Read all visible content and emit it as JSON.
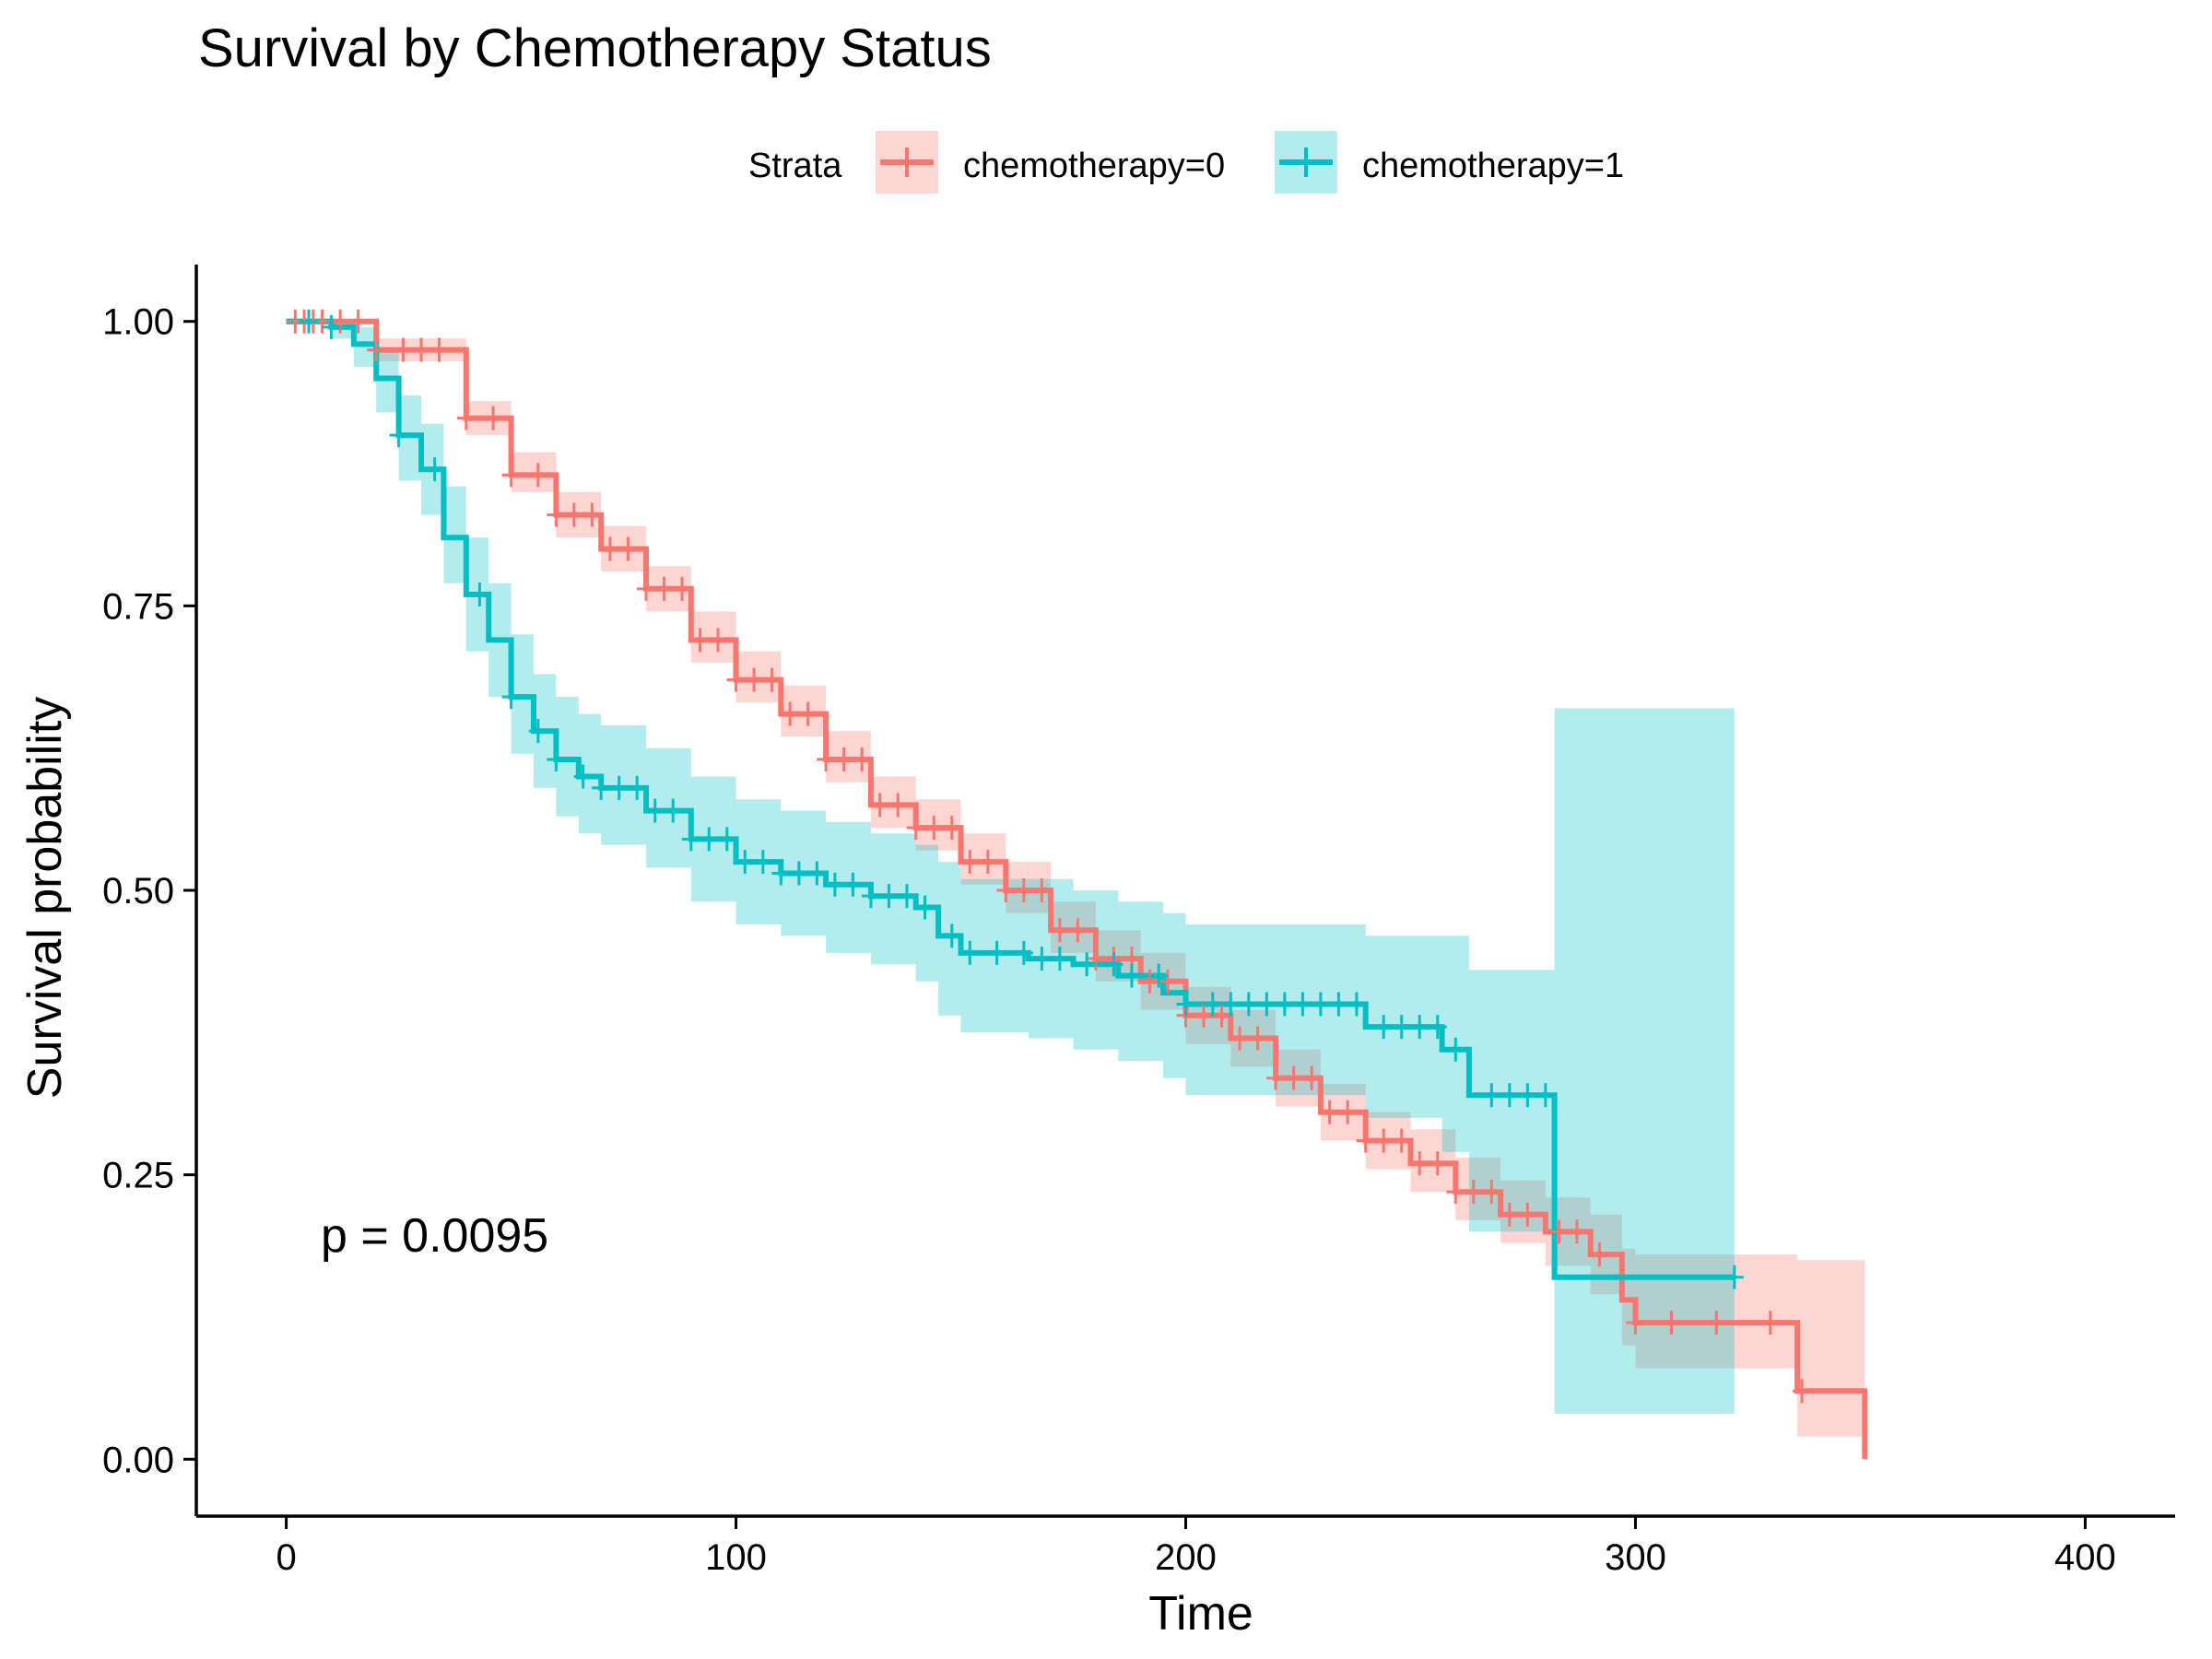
{
  "chart_data": {
    "type": "line",
    "subtype": "kaplan-meier",
    "title": "Survival by Chemotherapy Status",
    "xlabel": "Time",
    "ylabel": "Survival probability",
    "xlim": [
      -20,
      420
    ],
    "ylim": [
      -0.05,
      1.05
    ],
    "x_ticks": [
      0,
      100,
      200,
      300,
      400
    ],
    "y_ticks": [
      0,
      0.25,
      0.5,
      0.75,
      1
    ],
    "x_tick_labels": [
      "0",
      "100",
      "200",
      "300",
      "400"
    ],
    "y_tick_labels": [
      "0.00",
      "0.25",
      "0.50",
      "0.75",
      "1.00"
    ],
    "grid": false,
    "legend": {
      "title": "Strata",
      "position": "top"
    },
    "annotation": "p = 0.0095",
    "series": [
      {
        "name": "chemotherapy=0",
        "color": "#F8766D",
        "band_color": "#F8766D",
        "points": [
          [
            0,
            1.0
          ],
          [
            20,
            0.975
          ],
          [
            40,
            0.915
          ],
          [
            50,
            0.865
          ],
          [
            60,
            0.83
          ],
          [
            70,
            0.8
          ],
          [
            80,
            0.765
          ],
          [
            90,
            0.72
          ],
          [
            100,
            0.685
          ],
          [
            110,
            0.655
          ],
          [
            120,
            0.615
          ],
          [
            130,
            0.575
          ],
          [
            140,
            0.555
          ],
          [
            150,
            0.525
          ],
          [
            160,
            0.5
          ],
          [
            170,
            0.465
          ],
          [
            180,
            0.44
          ],
          [
            190,
            0.42
          ],
          [
            200,
            0.39
          ],
          [
            210,
            0.37
          ],
          [
            220,
            0.335
          ],
          [
            230,
            0.305
          ],
          [
            240,
            0.28
          ],
          [
            250,
            0.26
          ],
          [
            260,
            0.235
          ],
          [
            270,
            0.215
          ],
          [
            280,
            0.2
          ],
          [
            290,
            0.18
          ],
          [
            297,
            0.14
          ],
          [
            300,
            0.12
          ],
          [
            336,
            0.12
          ],
          [
            336,
            0.06
          ],
          [
            351,
            0.06
          ],
          [
            351,
            0.0
          ]
        ],
        "lower": [
          [
            0,
            1.0
          ],
          [
            20,
            0.965
          ],
          [
            40,
            0.9
          ],
          [
            50,
            0.85
          ],
          [
            60,
            0.81
          ],
          [
            70,
            0.78
          ],
          [
            80,
            0.745
          ],
          [
            90,
            0.7
          ],
          [
            100,
            0.665
          ],
          [
            110,
            0.635
          ],
          [
            120,
            0.595
          ],
          [
            130,
            0.555
          ],
          [
            140,
            0.535
          ],
          [
            150,
            0.505
          ],
          [
            160,
            0.48
          ],
          [
            170,
            0.445
          ],
          [
            180,
            0.42
          ],
          [
            190,
            0.395
          ],
          [
            200,
            0.365
          ],
          [
            210,
            0.345
          ],
          [
            220,
            0.31
          ],
          [
            230,
            0.28
          ],
          [
            240,
            0.255
          ],
          [
            250,
            0.235
          ],
          [
            260,
            0.21
          ],
          [
            270,
            0.19
          ],
          [
            280,
            0.17
          ],
          [
            290,
            0.145
          ],
          [
            297,
            0.1
          ],
          [
            300,
            0.08
          ],
          [
            336,
            0.08
          ],
          [
            336,
            0.02
          ],
          [
            351,
            0.02
          ]
        ],
        "upper": [
          [
            0,
            1.0
          ],
          [
            20,
            0.985
          ],
          [
            40,
            0.93
          ],
          [
            50,
            0.885
          ],
          [
            60,
            0.85
          ],
          [
            70,
            0.82
          ],
          [
            80,
            0.785
          ],
          [
            90,
            0.745
          ],
          [
            100,
            0.71
          ],
          [
            110,
            0.68
          ],
          [
            120,
            0.64
          ],
          [
            130,
            0.6
          ],
          [
            140,
            0.58
          ],
          [
            150,
            0.55
          ],
          [
            160,
            0.525
          ],
          [
            170,
            0.49
          ],
          [
            180,
            0.465
          ],
          [
            190,
            0.445
          ],
          [
            200,
            0.415
          ],
          [
            210,
            0.395
          ],
          [
            220,
            0.36
          ],
          [
            230,
            0.33
          ],
          [
            240,
            0.305
          ],
          [
            250,
            0.29
          ],
          [
            260,
            0.265
          ],
          [
            270,
            0.245
          ],
          [
            280,
            0.23
          ],
          [
            290,
            0.215
          ],
          [
            297,
            0.185
          ],
          [
            300,
            0.18
          ],
          [
            336,
            0.18
          ],
          [
            336,
            0.175
          ],
          [
            351,
            0.175
          ]
        ],
        "censor_times": [
          2,
          4,
          6,
          8,
          12,
          16,
          20,
          26,
          30,
          34,
          40,
          46,
          50,
          56,
          60,
          64,
          68,
          72,
          76,
          80,
          84,
          88,
          92,
          96,
          100,
          104,
          108,
          112,
          116,
          120,
          124,
          128,
          132,
          136,
          140,
          144,
          148,
          152,
          156,
          160,
          164,
          168,
          172,
          176,
          180,
          184,
          188,
          192,
          196,
          200,
          204,
          208,
          212,
          216,
          220,
          224,
          228,
          232,
          236,
          240,
          244,
          248,
          252,
          256,
          260,
          264,
          268,
          272,
          276,
          283,
          287,
          292,
          300,
          308,
          318,
          330,
          337
        ]
      },
      {
        "name": "chemotherapy=1",
        "color": "#00BFC4",
        "band_color": "#00BFC4",
        "points": [
          [
            0,
            1.0
          ],
          [
            10,
            0.995
          ],
          [
            15,
            0.98
          ],
          [
            20,
            0.95
          ],
          [
            25,
            0.9
          ],
          [
            30,
            0.87
          ],
          [
            35,
            0.81
          ],
          [
            40,
            0.76
          ],
          [
            45,
            0.72
          ],
          [
            50,
            0.67
          ],
          [
            55,
            0.64
          ],
          [
            60,
            0.615
          ],
          [
            65,
            0.6
          ],
          [
            70,
            0.59
          ],
          [
            80,
            0.57
          ],
          [
            90,
            0.545
          ],
          [
            100,
            0.525
          ],
          [
            110,
            0.515
          ],
          [
            120,
            0.505
          ],
          [
            130,
            0.495
          ],
          [
            140,
            0.485
          ],
          [
            145,
            0.46
          ],
          [
            150,
            0.445
          ],
          [
            165,
            0.44
          ],
          [
            175,
            0.435
          ],
          [
            185,
            0.425
          ],
          [
            195,
            0.41
          ],
          [
            200,
            0.4
          ],
          [
            240,
            0.4
          ],
          [
            240,
            0.38
          ],
          [
            257,
            0.38
          ],
          [
            257,
            0.36
          ],
          [
            263,
            0.36
          ],
          [
            263,
            0.32
          ],
          [
            282,
            0.32
          ],
          [
            282,
            0.16
          ],
          [
            322,
            0.16
          ]
        ],
        "lower": [
          [
            0,
            1.0
          ],
          [
            10,
            0.985
          ],
          [
            15,
            0.96
          ],
          [
            20,
            0.92
          ],
          [
            25,
            0.86
          ],
          [
            30,
            0.83
          ],
          [
            35,
            0.77
          ],
          [
            40,
            0.71
          ],
          [
            45,
            0.67
          ],
          [
            50,
            0.62
          ],
          [
            55,
            0.59
          ],
          [
            60,
            0.565
          ],
          [
            65,
            0.55
          ],
          [
            70,
            0.54
          ],
          [
            80,
            0.52
          ],
          [
            90,
            0.49
          ],
          [
            100,
            0.47
          ],
          [
            110,
            0.46
          ],
          [
            120,
            0.445
          ],
          [
            130,
            0.435
          ],
          [
            140,
            0.42
          ],
          [
            145,
            0.39
          ],
          [
            150,
            0.375
          ],
          [
            165,
            0.37
          ],
          [
            175,
            0.36
          ],
          [
            185,
            0.35
          ],
          [
            195,
            0.335
          ],
          [
            200,
            0.32
          ],
          [
            240,
            0.32
          ],
          [
            240,
            0.3
          ],
          [
            257,
            0.3
          ],
          [
            257,
            0.27
          ],
          [
            263,
            0.27
          ],
          [
            263,
            0.2
          ],
          [
            282,
            0.2
          ],
          [
            282,
            0.04
          ],
          [
            322,
            0.04
          ]
        ],
        "upper": [
          [
            0,
            1.0
          ],
          [
            10,
            1.0
          ],
          [
            15,
            0.995
          ],
          [
            20,
            0.975
          ],
          [
            25,
            0.935
          ],
          [
            30,
            0.91
          ],
          [
            35,
            0.855
          ],
          [
            40,
            0.81
          ],
          [
            45,
            0.77
          ],
          [
            50,
            0.725
          ],
          [
            55,
            0.69
          ],
          [
            60,
            0.67
          ],
          [
            65,
            0.655
          ],
          [
            70,
            0.645
          ],
          [
            80,
            0.625
          ],
          [
            90,
            0.6
          ],
          [
            100,
            0.58
          ],
          [
            110,
            0.57
          ],
          [
            120,
            0.56
          ],
          [
            130,
            0.55
          ],
          [
            140,
            0.54
          ],
          [
            145,
            0.525
          ],
          [
            150,
            0.51
          ],
          [
            165,
            0.51
          ],
          [
            175,
            0.5
          ],
          [
            185,
            0.49
          ],
          [
            195,
            0.48
          ],
          [
            200,
            0.47
          ],
          [
            240,
            0.47
          ],
          [
            240,
            0.46
          ],
          [
            257,
            0.46
          ],
          [
            257,
            0.46
          ],
          [
            263,
            0.46
          ],
          [
            263,
            0.43
          ],
          [
            282,
            0.43
          ],
          [
            282,
            0.66
          ],
          [
            322,
            0.66
          ]
        ],
        "censor_times": [
          5,
          10,
          25,
          33,
          43,
          50,
          56,
          60,
          66,
          70,
          74,
          78,
          82,
          86,
          90,
          94,
          98,
          102,
          106,
          110,
          114,
          118,
          122,
          126,
          130,
          134,
          138,
          142,
          148,
          152,
          158,
          164,
          168,
          172,
          178,
          184,
          188,
          194,
          200,
          206,
          210,
          214,
          218,
          222,
          226,
          230,
          234,
          238,
          244,
          248,
          252,
          256,
          260,
          268,
          272,
          276,
          280,
          322
        ]
      }
    ]
  }
}
